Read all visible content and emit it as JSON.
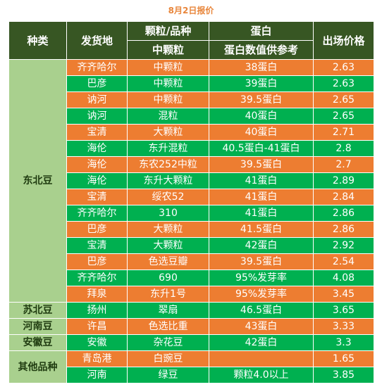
{
  "caption": "8月2日报价",
  "headers": {
    "category": "种类",
    "origin": "发货地",
    "grain_top": "颗粒/品种",
    "grain_sub": "中颗粒",
    "protein_top": "蛋白",
    "protein_sub": "蛋白数值供参考",
    "price": "出场价格"
  },
  "categories": [
    {
      "name": "东北豆",
      "rows": [
        {
          "origin": "齐齐哈尔",
          "grain": "中颗粒",
          "protein": "38蛋白",
          "price": "2.63"
        },
        {
          "origin": "巴彦",
          "grain": "中颗粒",
          "protein": "39蛋白",
          "price": "2.63"
        },
        {
          "origin": "讷河",
          "grain": "中颗粒",
          "protein": "39.5蛋白",
          "price": "2.65"
        },
        {
          "origin": "讷河",
          "grain": "混粒",
          "protein": "40蛋白",
          "price": "2.65"
        },
        {
          "origin": "宝清",
          "grain": "大颗粒",
          "protein": "40蛋白",
          "price": "2.71"
        },
        {
          "origin": "海伦",
          "grain": "东升混粒",
          "protein": "40.5蛋白-41蛋白",
          "price": "2.8"
        },
        {
          "origin": "海伦",
          "grain": "东农252中粒",
          "protein": "39.5蛋白",
          "price": "2.7"
        },
        {
          "origin": "海伦",
          "grain": "东升大颗粒",
          "protein": "41蛋白",
          "price": "2.89"
        },
        {
          "origin": "宝清",
          "grain": "绥农52",
          "protein": "41蛋白",
          "price": "2.84"
        },
        {
          "origin": "齐齐哈尔",
          "grain": "310",
          "protein": "41蛋白",
          "price": "2.86"
        },
        {
          "origin": "巴彦",
          "grain": "大颗粒",
          "protein": "41.5蛋白",
          "price": "2.86"
        },
        {
          "origin": "宝清",
          "grain": "大颗粒",
          "protein": "42蛋白",
          "price": "2.92"
        },
        {
          "origin": "巴彦",
          "grain": "色选豆瓣",
          "protein": "39.5蛋白",
          "price": "2.54"
        },
        {
          "origin": "齐齐哈尔",
          "grain": "690",
          "protein": "95%发芽率",
          "price": "4.08"
        },
        {
          "origin": "拜泉",
          "grain": "东升1号",
          "protein": "95%发芽率",
          "price": "3.45"
        }
      ]
    },
    {
      "name": "苏北豆",
      "rows": [
        {
          "origin": "扬州",
          "grain": "翠扇",
          "protein": "46.5蛋白",
          "price": "3.65"
        }
      ]
    },
    {
      "name": "河南豆",
      "rows": [
        {
          "origin": "许昌",
          "grain": "色选比重",
          "protein": "43蛋白",
          "price": "3.33"
        }
      ]
    },
    {
      "name": "安徽豆",
      "rows": [
        {
          "origin": "安徽",
          "grain": "杂花豆",
          "protein": "42蛋白",
          "price": "3.3"
        }
      ]
    },
    {
      "name": "其他品种",
      "rows": [
        {
          "origin": "青岛港",
          "grain": "白豌豆",
          "protein": "",
          "price": "1.65"
        },
        {
          "origin": "河南",
          "grain": "绿豆",
          "protein": "颗粒4.0以上",
          "price": "3.85"
        }
      ]
    }
  ],
  "colors": {
    "orange": "#ed7d31",
    "green": "#00b050",
    "header": "#375623",
    "category": "#a9d08e"
  }
}
